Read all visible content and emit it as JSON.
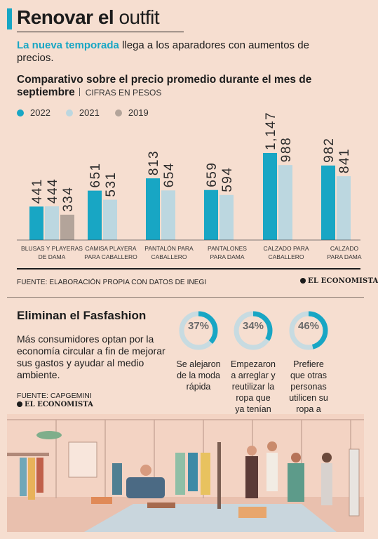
{
  "header": {
    "title_bold": "Renovar el",
    "title_light": "outfit",
    "lead_accent": "La nueva temporada",
    "lead_rest": "llega a los aparadores con aumentos de precios."
  },
  "chart_section": {
    "title": "Comparativo sobre el precio promedio durante el mes de septiembre",
    "unit": "CIFRAS EN PESOS",
    "source": "FUENTE: ELABORACIÓN PROPIA CON DATOS DE INEGI",
    "logo": "EL ECONOMISTA"
  },
  "chart_data": {
    "type": "bar",
    "categories": [
      "BLUSAS Y PLAYERAS DE DAMA",
      "CAMISA PLAYERA PARA CABALLERO",
      "PANTALÓN PARA CABALLERO",
      "PANTALONES PARA DAMA",
      "CALZADO PARA CABALLERO",
      "CALZADO PARA DAMA"
    ],
    "category_lines": [
      [
        "BLUSAS Y PLAYERAS",
        "DE DAMA"
      ],
      [
        "CAMISA PLAYERA",
        "PARA CABALLERO"
      ],
      [
        "PANTALÓN PARA",
        "CABALLERO"
      ],
      [
        "PANTALONES",
        "PARA DAMA"
      ],
      [
        "CALZADO PARA",
        "CABALLERO"
      ],
      [
        "CALZADO",
        "PARA DAMA"
      ]
    ],
    "series": [
      {
        "name": "2022",
        "color": "#18a6c4",
        "values": [
          441,
          651,
          813,
          659,
          1147,
          982
        ],
        "labels": [
          "441",
          "651",
          "813",
          "659",
          "1,147",
          "982"
        ]
      },
      {
        "name": "2021",
        "color": "#bcd7e0",
        "values": [
          444,
          531,
          654,
          594,
          988,
          841
        ],
        "labels": [
          "444",
          "531",
          "654",
          "594",
          "988",
          "841"
        ]
      },
      {
        "name": "2019",
        "color": "#b3a49a",
        "values": [
          334,
          null,
          null,
          null,
          null,
          null
        ],
        "labels": [
          "334",
          "",
          "",
          "",
          "",
          ""
        ]
      }
    ],
    "ylim": [
      0,
      1147
    ],
    "grid": false,
    "legend": "top-left"
  },
  "fasfashion": {
    "title": "Eliminan el Fasfashion",
    "body": "Más consumidores optan por la economía circular a fin de mejorar sus gastos y ayudar al medio ambiente.",
    "source": "FUENTE: CAPGEMINI",
    "logo": "EL ECONOMISTA",
    "stats": [
      {
        "value": 37,
        "label": "37%",
        "desc": "Se alejaron de la moda rápida"
      },
      {
        "value": 34,
        "label": "34%",
        "desc": "Empezaron a arreglar y reutilizar la ropa que ya tenían"
      },
      {
        "value": 46,
        "label": "46%",
        "desc": "Prefiere que otras personas utilicen su ropa a través de donaciones"
      }
    ],
    "ring_colors": {
      "fill": "#18a6c4",
      "track": "#c7dbe1"
    }
  },
  "illustration": {
    "icon": "clothing-store-illustration"
  }
}
